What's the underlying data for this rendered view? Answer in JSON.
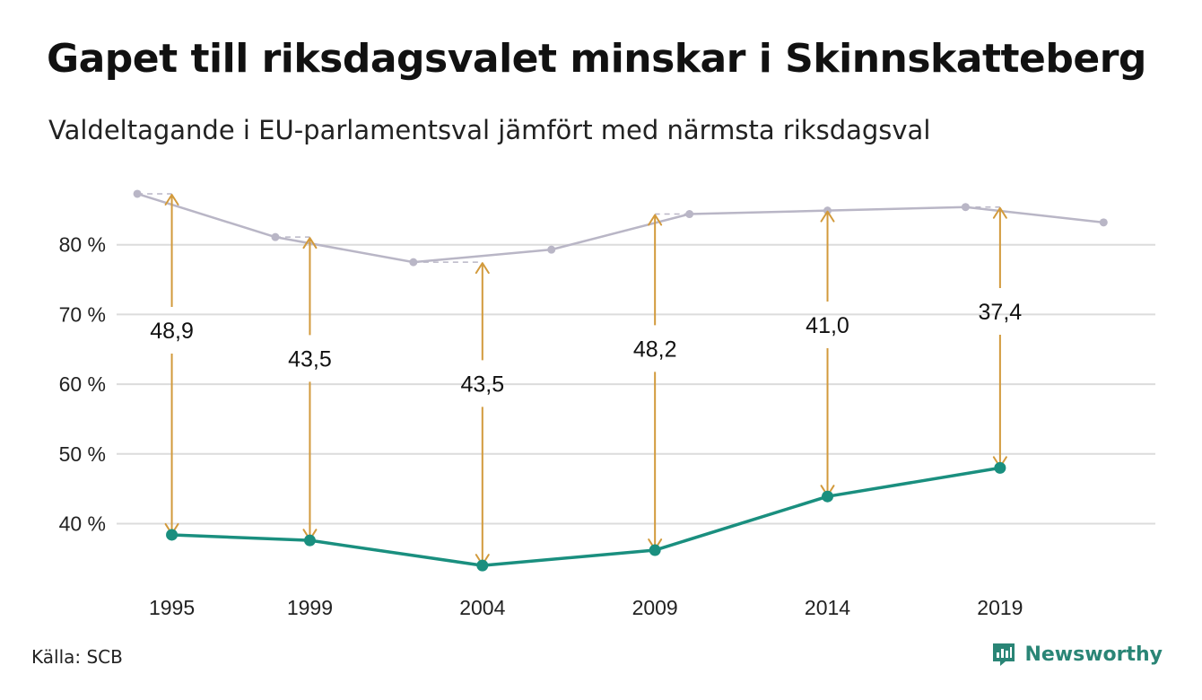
{
  "header": {
    "title": "Gapet till riksdagsvalet minskar i Skinnskatteberg",
    "subtitle": "Valdeltagande i EU-parlamentsval jämfört med närmsta riksdagsval"
  },
  "footer": {
    "source": "Källa: SCB",
    "brand": "Newsworthy"
  },
  "colors": {
    "eu": "#1a8f7f",
    "riksdag": "#b9b6c6",
    "gap_arrow": "#d29a3c",
    "grid": "#dcdcdc",
    "brand": "#2a8576"
  },
  "icons": {
    "brand": "newsworthy-logo-icon"
  },
  "chart_data": {
    "type": "line",
    "x_axis": {
      "type": "year",
      "range": [
        1993.4,
        2023.5
      ],
      "ticks": [
        1995,
        1999,
        2004,
        2009,
        2014,
        2019
      ]
    },
    "y_axis": {
      "range": [
        30.8,
        90
      ],
      "ticks": [
        40,
        50,
        60,
        70,
        80
      ],
      "tick_labels": [
        "40 %",
        "50 %",
        "60 %",
        "70 %",
        "80 %"
      ]
    },
    "grid": "horizontal",
    "series": [
      {
        "key": "riksdag",
        "points": [
          {
            "x": 1994,
            "y": 87.3
          },
          {
            "x": 1998,
            "y": 81.1
          },
          {
            "x": 2002,
            "y": 77.5
          },
          {
            "x": 2006,
            "y": 79.3
          },
          {
            "x": 2010,
            "y": 84.4
          },
          {
            "x": 2014,
            "y": 84.9
          },
          {
            "x": 2018,
            "y": 85.4
          },
          {
            "x": 2022,
            "y": 83.2
          }
        ]
      },
      {
        "key": "eu",
        "points": [
          {
            "x": 1995,
            "y": 38.4
          },
          {
            "x": 1999,
            "y": 37.6
          },
          {
            "x": 2004,
            "y": 34.0
          },
          {
            "x": 2009,
            "y": 36.2
          },
          {
            "x": 2014,
            "y": 43.9
          },
          {
            "x": 2019,
            "y": 48.0
          }
        ]
      }
    ],
    "gaps": [
      {
        "x": 1995,
        "eu": 38.4,
        "riksdag": 87.3,
        "label": "48,9"
      },
      {
        "x": 1999,
        "eu": 37.6,
        "riksdag": 81.1,
        "label": "43,5"
      },
      {
        "x": 2004,
        "eu": 34.0,
        "riksdag": 77.5,
        "label": "43,5"
      },
      {
        "x": 2009,
        "eu": 36.2,
        "riksdag": 84.4,
        "label": "48,2"
      },
      {
        "x": 2014,
        "eu": 43.9,
        "riksdag": 84.9,
        "label": "41,0"
      },
      {
        "x": 2019,
        "eu": 48.0,
        "riksdag": 85.4,
        "label": "37,4"
      }
    ]
  }
}
